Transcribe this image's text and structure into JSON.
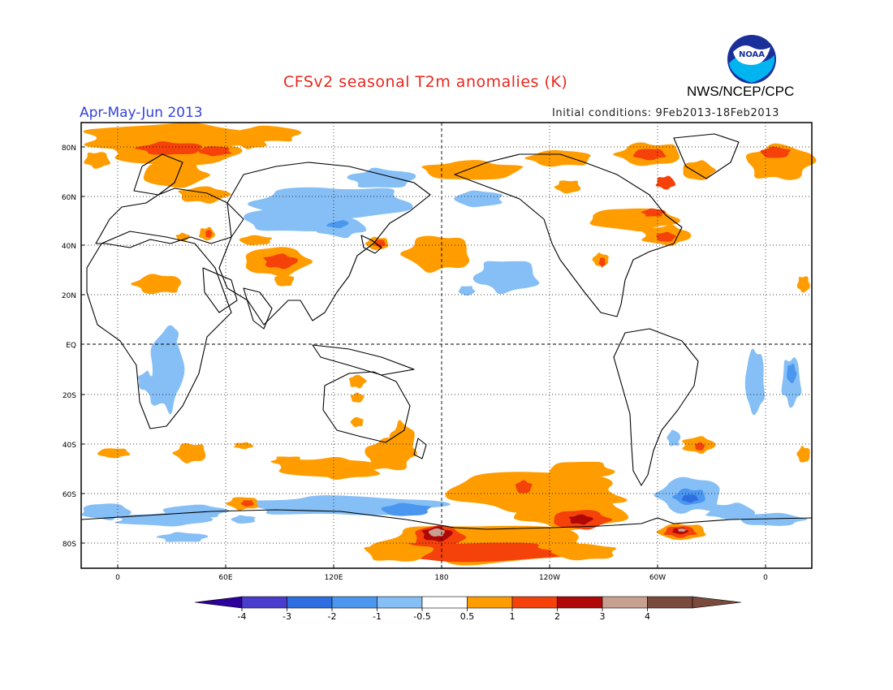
{
  "header": {
    "title": "CFSv2 seasonal T2m anomalies (K)",
    "agency": "NWS/NCEP/CPC",
    "period": "Apr-May-Jun 2013",
    "initial_conditions": "Initial conditions: 9Feb2013-18Feb2013",
    "logo_text": "NOAA"
  },
  "map": {
    "lat_labels": [
      "80N",
      "60N",
      "40N",
      "20N",
      "EQ",
      "20S",
      "40S",
      "60S",
      "80S"
    ],
    "lon_labels": [
      "0",
      "60E",
      "120E",
      "180",
      "120W",
      "60W",
      "0"
    ]
  },
  "legend": {
    "levels": [
      "-4",
      "-3",
      "-2",
      "-1",
      "-0.5",
      "0.5",
      "1",
      "2",
      "3",
      "4"
    ],
    "colors": [
      "#2d009b",
      "#4a3ccc",
      "#2f6ee0",
      "#4b97f0",
      "#86bff5",
      "#ffffff",
      "#ff9d00",
      "#f5410a",
      "#b00808",
      "#c8a090",
      "#7a4a3c"
    ],
    "unit": "K"
  },
  "style": {
    "title_color": "#e8281e",
    "period_color": "#3444dc",
    "warm_color": "#ff9d00",
    "hot_color": "#f5410a",
    "cool_color": "#86bff5",
    "cold_color": "#4b97f0"
  }
}
